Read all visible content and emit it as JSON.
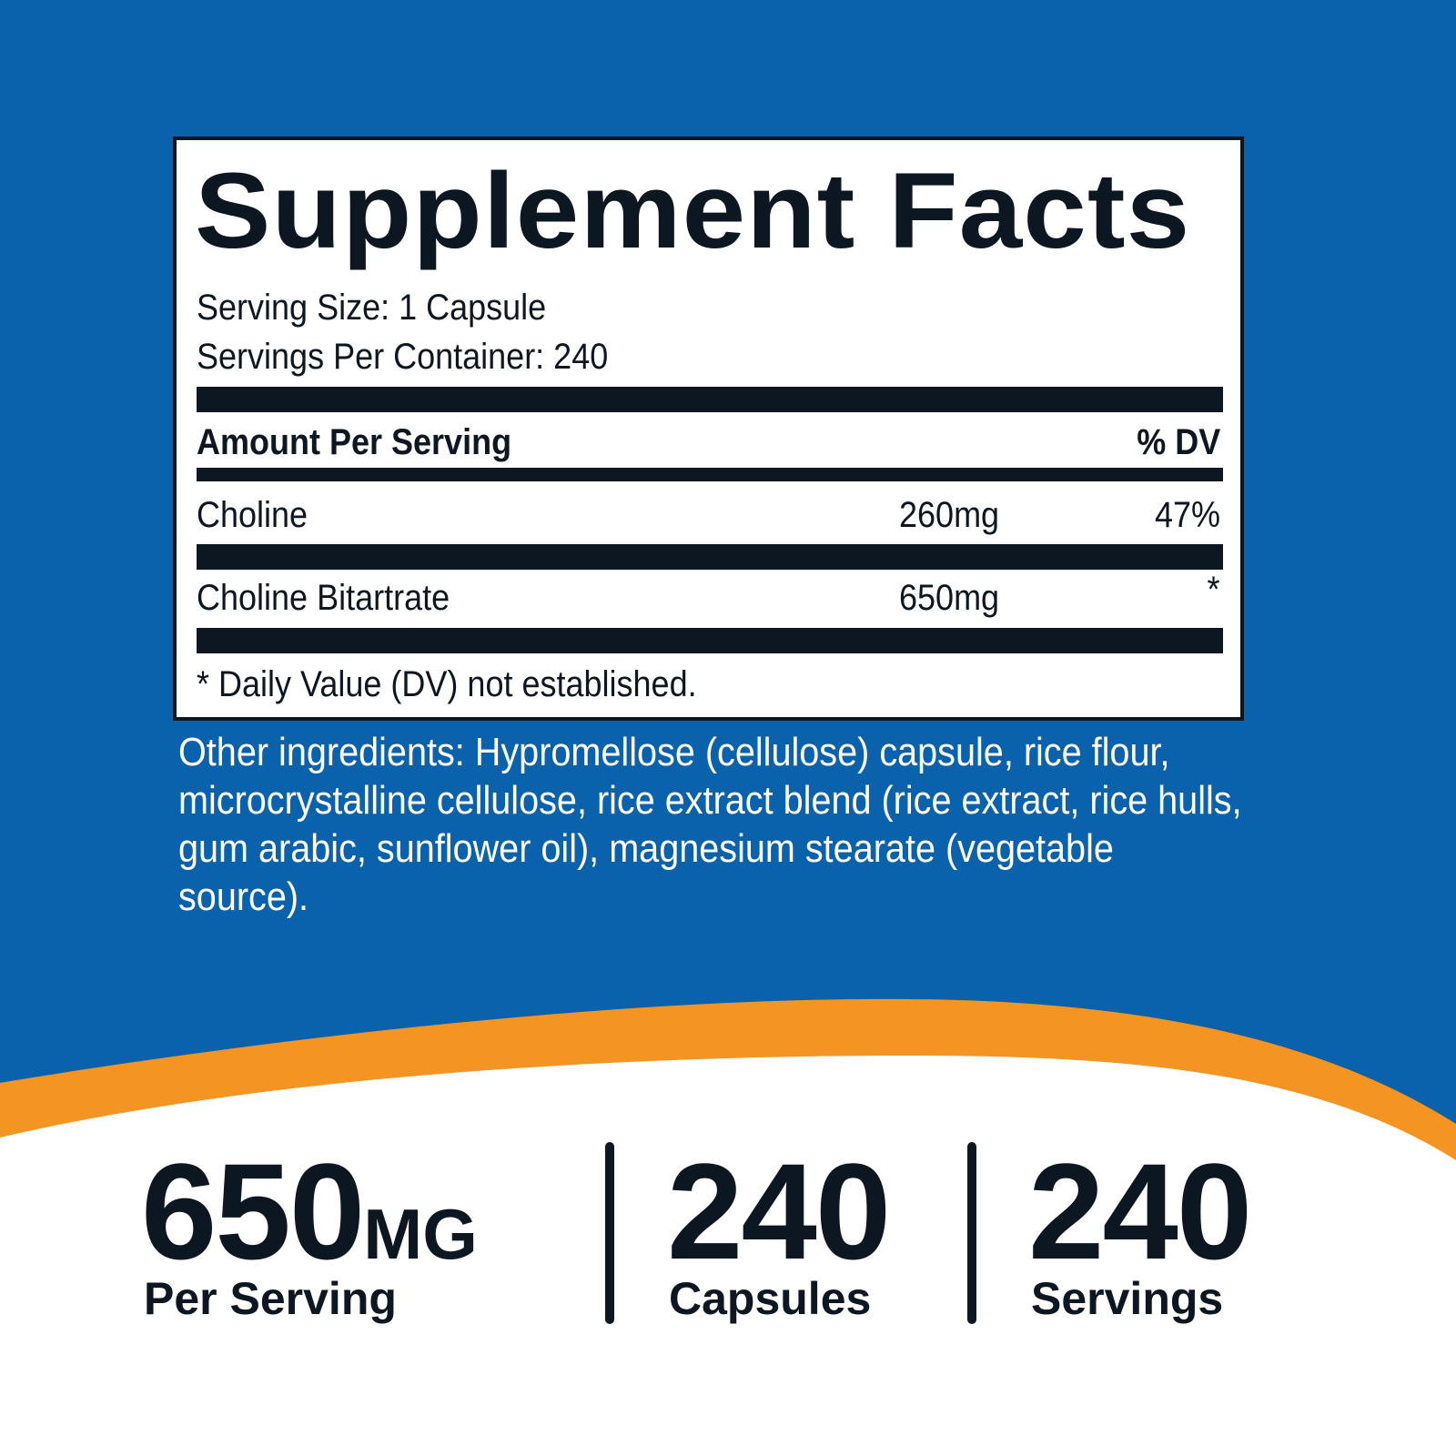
{
  "label": {
    "title": "Supplement Facts",
    "serving_size": "Serving Size: 1 Capsule",
    "servings_per_container": "Servings Per Container: 240",
    "header": {
      "amount": "Amount Per Serving",
      "dv": "% DV"
    },
    "rows": [
      [
        "Choline",
        "260mg",
        "47%"
      ],
      [
        "Choline Bitartrate",
        "650mg",
        "*"
      ]
    ],
    "footnote": "* Daily Value (DV) not established."
  },
  "other_ingredients": "Other ingredients: Hypromellose (cellulose) capsule, rice flour, microcrystalline cellulose, rice extract blend (rice extract, rice hulls, gum arabic, sunflower oil), magnesium stearate (vegetable source).",
  "stats": [
    {
      "value": "650",
      "unit": "MG",
      "caption": "Per Serving"
    },
    {
      "value": "240",
      "caption": "Capsules"
    },
    {
      "value": "240",
      "caption": "Servings"
    }
  ]
}
